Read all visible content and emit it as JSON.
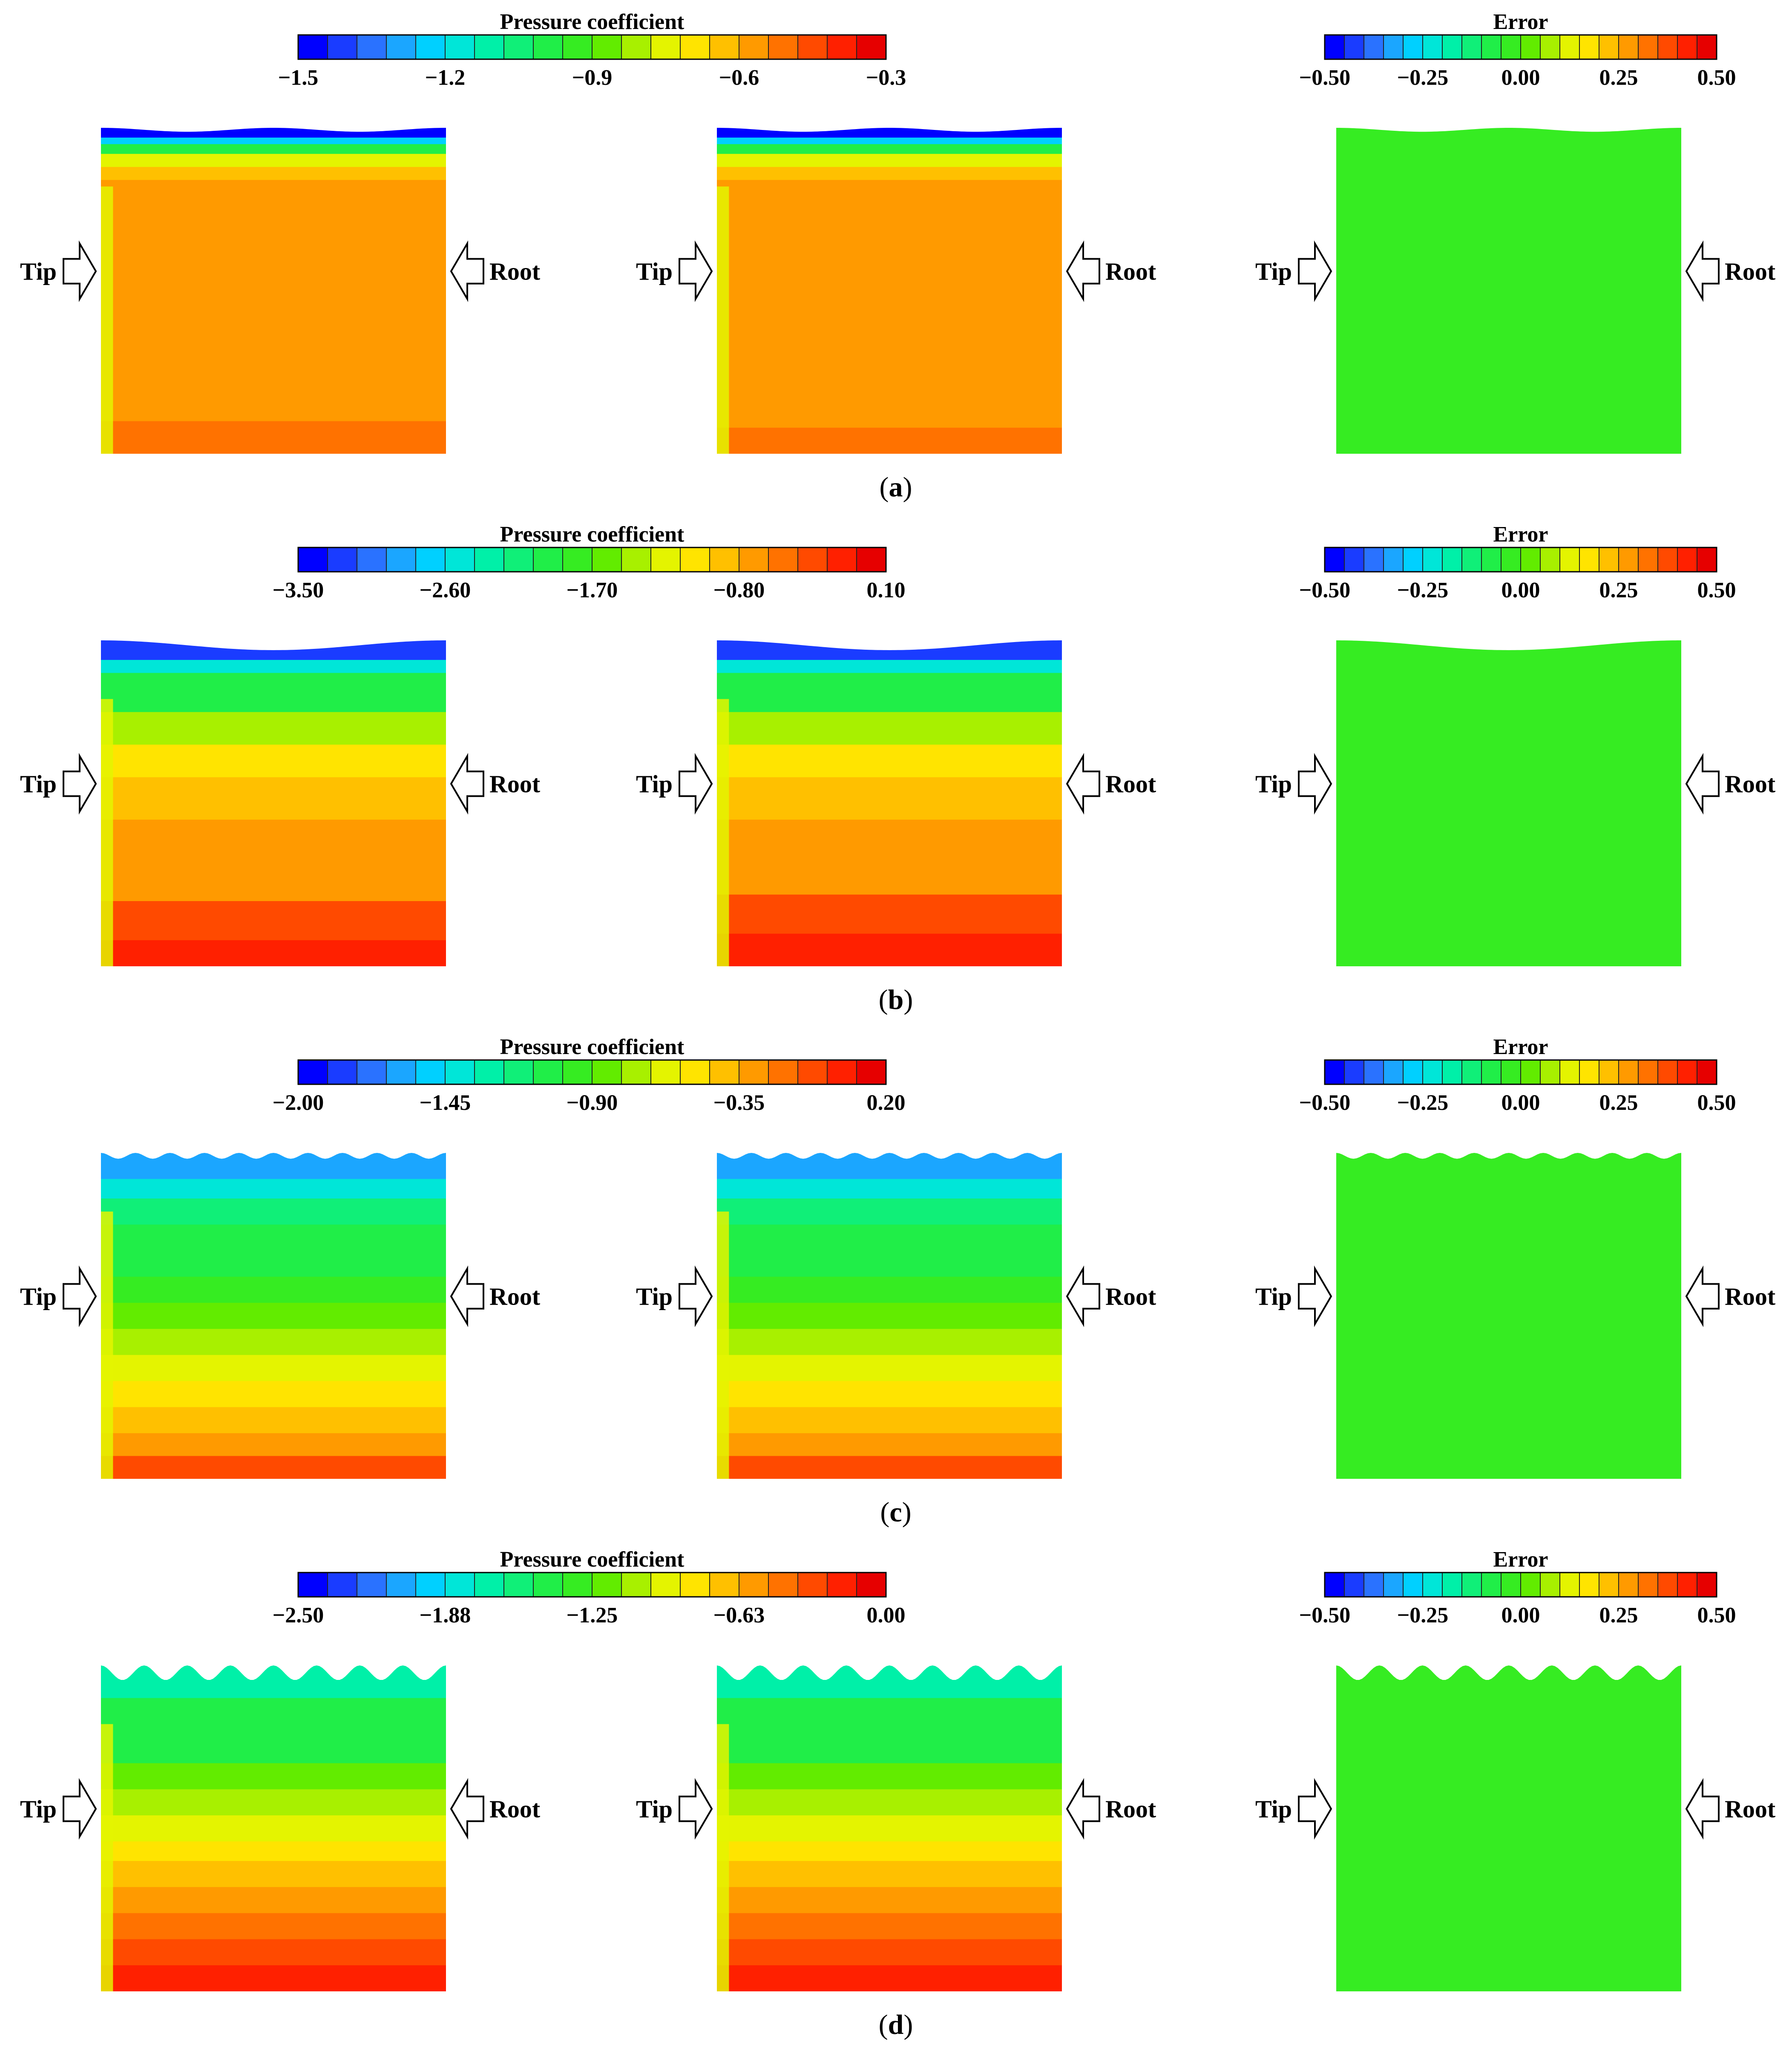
{
  "colormap": [
    "#0000ff",
    "#1a3cff",
    "#2a72ff",
    "#1ba6ff",
    "#00d0ff",
    "#00e6d8",
    "#00f0a8",
    "#10ef78",
    "#20ee48",
    "#36ec22",
    "#62ec00",
    "#a8f000",
    "#e4f400",
    "#ffe400",
    "#ffc000",
    "#ff9a00",
    "#ff7200",
    "#ff4a00",
    "#ff2000",
    "#e60000"
  ],
  "labels": {
    "tip": "Tip",
    "root": "Root"
  },
  "rows": [
    {
      "id": "a",
      "label": "a",
      "wave": {
        "count": 2,
        "amplitude": 0.012
      },
      "pressure_colorbar": {
        "title": "Pressure coefficient",
        "ticks": [
          "−1.5",
          "−1.2",
          "−0.9",
          "−0.6",
          "−0.3"
        ]
      },
      "error_colorbar": {
        "title": "Error",
        "ticks": [
          "−0.50",
          "−0.25",
          "0.00",
          "0.25",
          "0.50"
        ]
      },
      "bands_pred": [
        {
          "start": 0.0,
          "color_index": 0
        },
        {
          "start": 0.03,
          "color_index": 4
        },
        {
          "start": 0.05,
          "color_index": 8
        },
        {
          "start": 0.08,
          "color_index": 12
        },
        {
          "start": 0.12,
          "color_index": 14
        },
        {
          "start": 0.16,
          "color_index": 15
        },
        {
          "start": 0.9,
          "color_index": 16
        }
      ],
      "bands_true": [
        {
          "start": 0.0,
          "color_index": 0
        },
        {
          "start": 0.03,
          "color_index": 4
        },
        {
          "start": 0.05,
          "color_index": 8
        },
        {
          "start": 0.08,
          "color_index": 12
        },
        {
          "start": 0.12,
          "color_index": 14
        },
        {
          "start": 0.16,
          "color_index": 15
        },
        {
          "start": 0.92,
          "color_index": 16
        }
      ]
    },
    {
      "id": "b",
      "label": "b",
      "wave": {
        "count": 1,
        "amplitude": 0.03
      },
      "pressure_colorbar": {
        "title": "Pressure coefficient",
        "ticks": [
          "−3.50",
          "−2.60",
          "−1.70",
          "−0.80",
          "0.10"
        ]
      },
      "error_colorbar": {
        "title": "Error",
        "ticks": [
          "−0.50",
          "−0.25",
          "0.00",
          "0.25",
          "0.50"
        ]
      },
      "bands_pred": [
        {
          "start": 0.0,
          "color_index": 1
        },
        {
          "start": 0.06,
          "color_index": 5
        },
        {
          "start": 0.1,
          "color_index": 8
        },
        {
          "start": 0.22,
          "color_index": 11
        },
        {
          "start": 0.32,
          "color_index": 13
        },
        {
          "start": 0.42,
          "color_index": 14
        },
        {
          "start": 0.55,
          "color_index": 15
        },
        {
          "start": 0.8,
          "color_index": 17
        },
        {
          "start": 0.92,
          "color_index": 18
        }
      ],
      "bands_true": [
        {
          "start": 0.0,
          "color_index": 1
        },
        {
          "start": 0.06,
          "color_index": 5
        },
        {
          "start": 0.1,
          "color_index": 8
        },
        {
          "start": 0.22,
          "color_index": 11
        },
        {
          "start": 0.32,
          "color_index": 13
        },
        {
          "start": 0.42,
          "color_index": 14
        },
        {
          "start": 0.55,
          "color_index": 15
        },
        {
          "start": 0.78,
          "color_index": 17
        },
        {
          "start": 0.9,
          "color_index": 18
        }
      ]
    },
    {
      "id": "c",
      "label": "c",
      "wave": {
        "count": 10,
        "amplitude": 0.018
      },
      "pressure_colorbar": {
        "title": "Pressure coefficient",
        "ticks": [
          "−2.00",
          "−1.45",
          "−0.90",
          "−0.35",
          "0.20"
        ]
      },
      "error_colorbar": {
        "title": "Error",
        "ticks": [
          "−0.50",
          "−0.25",
          "0.00",
          "0.25",
          "0.50"
        ]
      },
      "bands_pred": [
        {
          "start": 0.0,
          "color_index": 3
        },
        {
          "start": 0.08,
          "color_index": 5
        },
        {
          "start": 0.14,
          "color_index": 7
        },
        {
          "start": 0.22,
          "color_index": 8
        },
        {
          "start": 0.38,
          "color_index": 9
        },
        {
          "start": 0.46,
          "color_index": 10
        },
        {
          "start": 0.54,
          "color_index": 11
        },
        {
          "start": 0.62,
          "color_index": 12
        },
        {
          "start": 0.7,
          "color_index": 13
        },
        {
          "start": 0.78,
          "color_index": 14
        },
        {
          "start": 0.86,
          "color_index": 15
        },
        {
          "start": 0.93,
          "color_index": 17
        }
      ],
      "bands_true": [
        {
          "start": 0.0,
          "color_index": 3
        },
        {
          "start": 0.08,
          "color_index": 5
        },
        {
          "start": 0.14,
          "color_index": 7
        },
        {
          "start": 0.22,
          "color_index": 8
        },
        {
          "start": 0.38,
          "color_index": 9
        },
        {
          "start": 0.46,
          "color_index": 10
        },
        {
          "start": 0.54,
          "color_index": 11
        },
        {
          "start": 0.62,
          "color_index": 12
        },
        {
          "start": 0.7,
          "color_index": 13
        },
        {
          "start": 0.78,
          "color_index": 14
        },
        {
          "start": 0.86,
          "color_index": 15
        },
        {
          "start": 0.93,
          "color_index": 17
        }
      ]
    },
    {
      "id": "d",
      "label": "d",
      "wave": {
        "count": 8,
        "amplitude": 0.045
      },
      "pressure_colorbar": {
        "title": "Pressure coefficient",
        "ticks": [
          "−2.50",
          "−1.88",
          "−1.25",
          "−0.63",
          "0.00"
        ]
      },
      "error_colorbar": {
        "title": "Error",
        "ticks": [
          "−0.50",
          "−0.25",
          "0.00",
          "0.25",
          "0.50"
        ]
      },
      "bands_pred": [
        {
          "start": 0.0,
          "color_index": 6
        },
        {
          "start": 0.1,
          "color_index": 8
        },
        {
          "start": 0.3,
          "color_index": 10
        },
        {
          "start": 0.38,
          "color_index": 11
        },
        {
          "start": 0.46,
          "color_index": 12
        },
        {
          "start": 0.54,
          "color_index": 13
        },
        {
          "start": 0.6,
          "color_index": 14
        },
        {
          "start": 0.68,
          "color_index": 15
        },
        {
          "start": 0.76,
          "color_index": 16
        },
        {
          "start": 0.84,
          "color_index": 17
        },
        {
          "start": 0.92,
          "color_index": 18
        }
      ],
      "bands_true": [
        {
          "start": 0.0,
          "color_index": 6
        },
        {
          "start": 0.1,
          "color_index": 8
        },
        {
          "start": 0.3,
          "color_index": 10
        },
        {
          "start": 0.38,
          "color_index": 11
        },
        {
          "start": 0.46,
          "color_index": 12
        },
        {
          "start": 0.54,
          "color_index": 13
        },
        {
          "start": 0.6,
          "color_index": 14
        },
        {
          "start": 0.68,
          "color_index": 15
        },
        {
          "start": 0.76,
          "color_index": 16
        },
        {
          "start": 0.84,
          "color_index": 17
        },
        {
          "start": 0.92,
          "color_index": 18
        }
      ]
    }
  ],
  "chart_data": [
    {
      "type": "heatmap",
      "subfigure": "a",
      "colorbars": [
        {
          "title": "Pressure coefficient",
          "range": [
            -1.5,
            -0.3
          ],
          "ticks": [
            -1.5,
            -1.2,
            -0.9,
            -0.6,
            -0.3
          ]
        },
        {
          "title": "Error",
          "range": [
            -0.5,
            0.5
          ],
          "ticks": [
            -0.5,
            -0.25,
            0.0,
            0.25,
            0.5
          ]
        }
      ]
    },
    {
      "type": "heatmap",
      "subfigure": "b",
      "colorbars": [
        {
          "title": "Pressure coefficient",
          "range": [
            -3.5,
            0.1
          ],
          "ticks": [
            -3.5,
            -2.6,
            -1.7,
            -0.8,
            0.1
          ]
        },
        {
          "title": "Error",
          "range": [
            -0.5,
            0.5
          ],
          "ticks": [
            -0.5,
            -0.25,
            0.0,
            0.25,
            0.5
          ]
        }
      ]
    },
    {
      "type": "heatmap",
      "subfigure": "c",
      "colorbars": [
        {
          "title": "Pressure coefficient",
          "range": [
            -2.0,
            0.2
          ],
          "ticks": [
            -2.0,
            -1.45,
            -0.9,
            -0.35,
            0.2
          ]
        },
        {
          "title": "Error",
          "range": [
            -0.5,
            0.5
          ],
          "ticks": [
            -0.5,
            -0.25,
            0.0,
            0.25,
            0.5
          ]
        }
      ]
    },
    {
      "type": "heatmap",
      "subfigure": "d",
      "colorbars": [
        {
          "title": "Pressure coefficient",
          "range": [
            -2.5,
            0.0
          ],
          "ticks": [
            -2.5,
            -1.88,
            -1.25,
            -0.63,
            0.0
          ]
        },
        {
          "title": "Error",
          "range": [
            -0.5,
            0.5
          ],
          "ticks": [
            -0.5,
            -0.25,
            0.0,
            0.25,
            0.5
          ]
        }
      ]
    }
  ]
}
